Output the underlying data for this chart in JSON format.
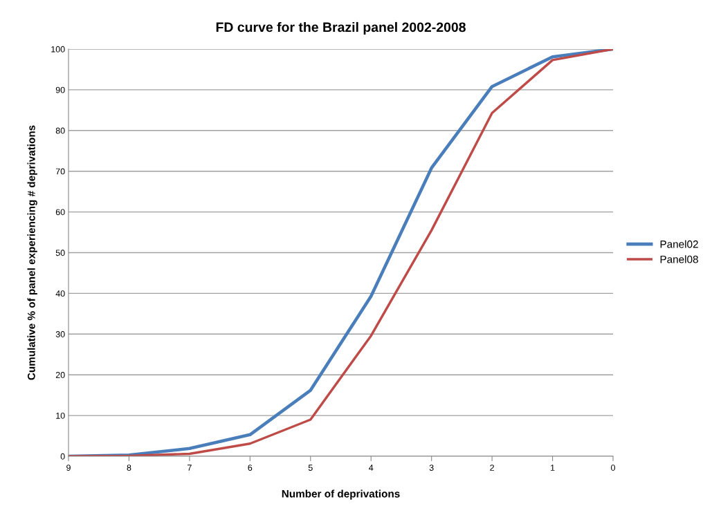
{
  "chart_data": {
    "type": "line",
    "title": "FD curve for the Brazil panel 2002-2008",
    "xlabel": "Number of deprivations",
    "ylabel": "Cumulative % of panel experiencing # deprivations",
    "categories": [
      "9",
      "8",
      "7",
      "6",
      "5",
      "4",
      "3",
      "2",
      "1",
      "0"
    ],
    "series": [
      {
        "name": "Panel02",
        "color": "#4a7ebb",
        "values": [
          0,
          0.3,
          1.9,
          5.3,
          16.2,
          39.3,
          70.8,
          90.8,
          98.1,
          100
        ]
      },
      {
        "name": "Panel08",
        "color": "#be4b48",
        "values": [
          0,
          0.1,
          0.6,
          3.1,
          9.0,
          29.6,
          55.5,
          84.3,
          97.3,
          100
        ]
      }
    ],
    "ylim": [
      0,
      100
    ],
    "yticks": [
      0,
      10,
      20,
      30,
      40,
      50,
      60,
      70,
      80,
      90,
      100
    ],
    "grid": "y",
    "legend": "right",
    "marker": "none",
    "line_style": "solid"
  }
}
